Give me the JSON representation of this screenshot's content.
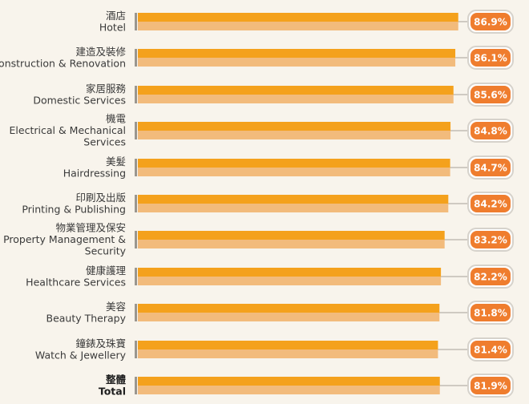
{
  "chart_data": {
    "type": "bar",
    "orientation": "horizontal",
    "categories": [
      {
        "zh": "酒店",
        "en": "Hotel"
      },
      {
        "zh": "建造及裝修",
        "en": "Construction & Renovation"
      },
      {
        "zh": "家居服務",
        "en": "Domestic Services"
      },
      {
        "zh": "機電",
        "en": "Electrical & Mechanical Services"
      },
      {
        "zh": "美髮",
        "en": "Hairdressing"
      },
      {
        "zh": "印刷及出版",
        "en": "Printing & Publishing"
      },
      {
        "zh": "物業管理及保安",
        "en": "Property Management & Security"
      },
      {
        "zh": "健康護理",
        "en": "Healthcare Services"
      },
      {
        "zh": "美容",
        "en": "Beauty Therapy"
      },
      {
        "zh": "鐘錶及珠寶",
        "en": "Watch & Jewellery"
      },
      {
        "zh": "整體",
        "en": "Total"
      }
    ],
    "values": [
      86.9,
      86.1,
      85.6,
      84.8,
      84.7,
      84.2,
      83.2,
      82.2,
      81.8,
      81.4,
      81.9
    ],
    "value_labels": [
      "86.9%",
      "86.1%",
      "85.6%",
      "84.8%",
      "84.7%",
      "84.2%",
      "83.2%",
      "82.2%",
      "81.8%",
      "81.4%",
      "81.9%"
    ],
    "unit": "%",
    "xlim": [
      0,
      100
    ],
    "colors": {
      "bar_top": "#f4a11c",
      "bar_bottom": "#f2bb7c",
      "badge": "#ef7d2e",
      "badge_ring": "#d6d2cb",
      "track": "#cfcac2",
      "divider": "#9a968f"
    }
  }
}
